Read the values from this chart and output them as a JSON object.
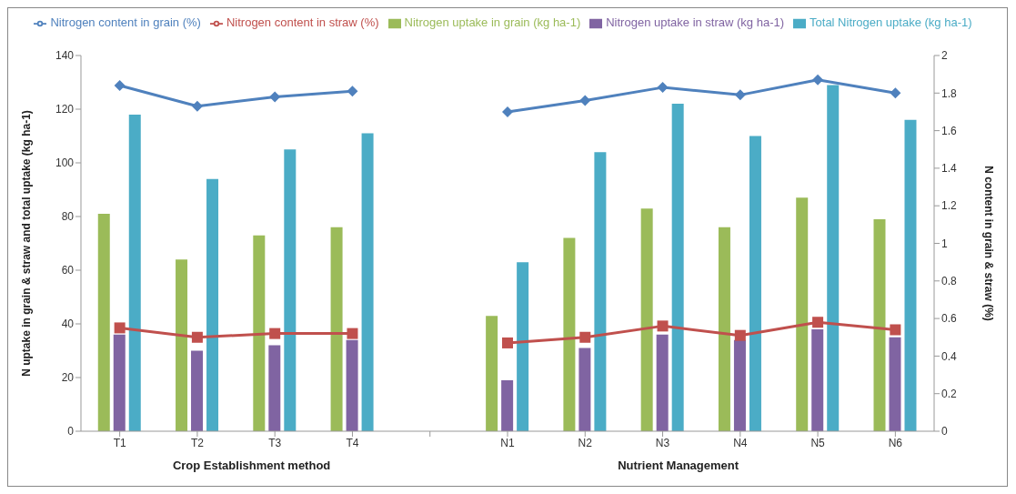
{
  "chart_data": {
    "type": "bar",
    "categories": [
      "T1",
      "T2",
      "T3",
      "T4",
      null,
      "N1",
      "N2",
      "N3",
      "N4",
      "N5",
      "N6"
    ],
    "ylabel": "N uptake in grain & straw and total uptake (kg ha-1)",
    "y2label": "N content in grain & straw (%)",
    "ylim": [
      0,
      140
    ],
    "yticks": [
      0,
      20,
      40,
      60,
      80,
      100,
      120,
      140
    ],
    "y2lim": [
      0,
      2
    ],
    "y2ticks": [
      0,
      0.2,
      0.4,
      0.6,
      0.8,
      1,
      1.2,
      1.4,
      1.6,
      1.8,
      2
    ],
    "legend": "top",
    "grid": false,
    "annotations": [
      "Crop Establishment method",
      "Nutrient Management"
    ],
    "series": [
      {
        "name": "Nitrogen uptake in grain (kg ha-1)",
        "color": "#9bbb59",
        "values": [
          81,
          64,
          73,
          76,
          null,
          43,
          72,
          83,
          76,
          87,
          79
        ]
      },
      {
        "name": "Nitrogen uptake in straw (kg ha-1)",
        "color": "#8064a2",
        "values": [
          36,
          30,
          32,
          34,
          null,
          19,
          31,
          36,
          34,
          38,
          35
        ]
      },
      {
        "name": "Total Nitrogen uptake (kg ha-1)",
        "color": "#4bacc6",
        "values": [
          118,
          94,
          105,
          111,
          null,
          63,
          104,
          122,
          110,
          129,
          116
        ]
      },
      {
        "name": "Nitrogen content in grain (%)",
        "type": "line",
        "axis": "y2",
        "marker": "diamond",
        "color": "#4f81bd",
        "values": [
          1.84,
          1.73,
          1.78,
          1.81,
          null,
          1.7,
          1.76,
          1.83,
          1.79,
          1.87,
          1.8
        ]
      },
      {
        "name": "Nitrogen content in straw (%)",
        "type": "line",
        "axis": "y2",
        "marker": "square",
        "color": "#c0504d",
        "values": [
          0.55,
          0.5,
          0.52,
          0.52,
          null,
          0.47,
          0.5,
          0.56,
          0.51,
          0.58,
          0.54
        ]
      }
    ]
  }
}
